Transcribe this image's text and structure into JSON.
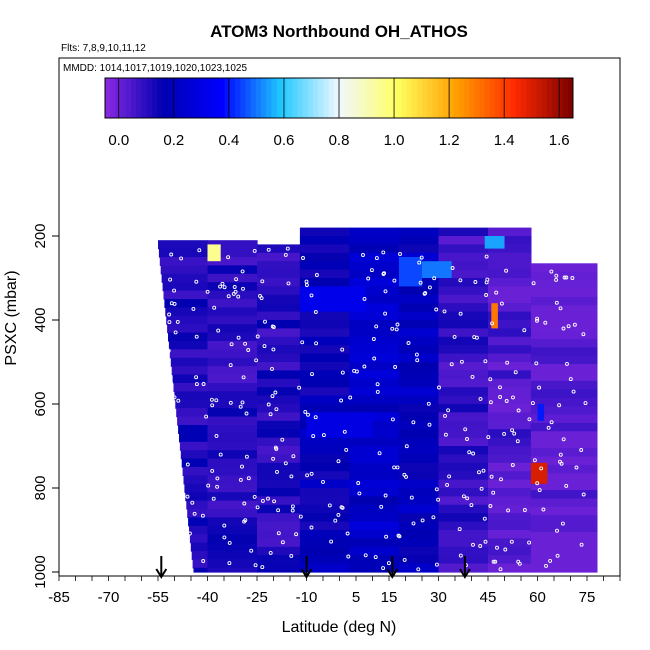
{
  "chart_data": {
    "type": "heatmap",
    "title": "ATOM3 Northbound OH_ATHOS",
    "flights_note": "Flts: 7,8,9,10,11,12",
    "dates_note": "MMDD: 1014,1017,1019,1020,1023,1025",
    "xlabel": "Latitude (deg N)",
    "ylabel": "PSXC (mbar)",
    "xlim": [
      -85,
      85
    ],
    "ylim": [
      1000,
      0
    ],
    "x_ticks": [
      "-85",
      "-70",
      "-55",
      "-40",
      "-25",
      "-10",
      "5",
      "15",
      "30",
      "45",
      "60",
      "75"
    ],
    "x_tick_values": [
      -85,
      -70,
      -55,
      -40,
      -25,
      -10,
      5,
      15,
      30,
      45,
      60,
      75
    ],
    "y_ticks": [
      "200",
      "400",
      "600",
      "800",
      "1000"
    ],
    "y_tick_values": [
      200,
      400,
      600,
      800,
      1000
    ],
    "colorbar": {
      "range": [
        -0.05,
        1.65
      ],
      "ticks": [
        "0.0",
        "0.2",
        "0.4",
        "0.6",
        "0.8",
        "1.0",
        "1.2",
        "1.4",
        "1.6"
      ],
      "tick_values": [
        0.0,
        0.2,
        0.4,
        0.6,
        0.8,
        1.0,
        1.2,
        1.4,
        1.6
      ],
      "colors": [
        "#8a2be2",
        "#0000b0",
        "#0000ff",
        "#1ec8ff",
        "#f0f8ff",
        "#ffff60",
        "#ffa000",
        "#ff2a00",
        "#7a0000"
      ]
    },
    "arrows_latitude": [
      -54,
      -10,
      16,
      38
    ],
    "blocks": [
      {
        "lat": [
          -55,
          -40
        ],
        "p": [
          210,
          1000
        ],
        "v": 0.12
      },
      {
        "lat": [
          -40,
          -25
        ],
        "p": [
          210,
          1000
        ],
        "v": 0.1
      },
      {
        "lat": [
          -25,
          -12
        ],
        "p": [
          220,
          1000
        ],
        "v": 0.11
      },
      {
        "lat": [
          -12,
          3
        ],
        "p": [
          180,
          1000
        ],
        "v": 0.18
      },
      {
        "lat": [
          3,
          18
        ],
        "p": [
          180,
          1000
        ],
        "v": 0.22
      },
      {
        "lat": [
          18,
          30
        ],
        "p": [
          180,
          1000
        ],
        "v": 0.2
      },
      {
        "lat": [
          30,
          45
        ],
        "p": [
          180,
          1000
        ],
        "v": 0.08
      },
      {
        "lat": [
          45,
          58
        ],
        "p": [
          180,
          1000
        ],
        "v": 0.04
      },
      {
        "lat": [
          58,
          78
        ],
        "p": [
          265,
          1000
        ],
        "v": 0.01
      }
    ],
    "highlights": [
      {
        "lat": [
          -12,
          8
        ],
        "p": [
          320,
          380
        ],
        "v": 0.32
      },
      {
        "lat": [
          -10,
          10
        ],
        "p": [
          620,
          680
        ],
        "v": 0.3
      },
      {
        "lat": [
          18,
          25
        ],
        "p": [
          250,
          320
        ],
        "v": 0.45
      },
      {
        "lat": [
          25,
          34
        ],
        "p": [
          260,
          300
        ],
        "v": 0.5
      },
      {
        "lat": [
          44,
          50
        ],
        "p": [
          200,
          230
        ],
        "v": 0.55
      },
      {
        "lat": [
          46,
          48
        ],
        "p": [
          360,
          420
        ],
        "v": 1.3
      },
      {
        "lat": [
          58,
          63
        ],
        "p": [
          740,
          790
        ],
        "v": 1.5
      },
      {
        "lat": [
          -40,
          -36
        ],
        "p": [
          220,
          260
        ],
        "v": 0.95
      },
      {
        "lat": [
          60,
          62
        ],
        "p": [
          600,
          640
        ],
        "v": 0.4
      }
    ],
    "point_count": 350
  }
}
